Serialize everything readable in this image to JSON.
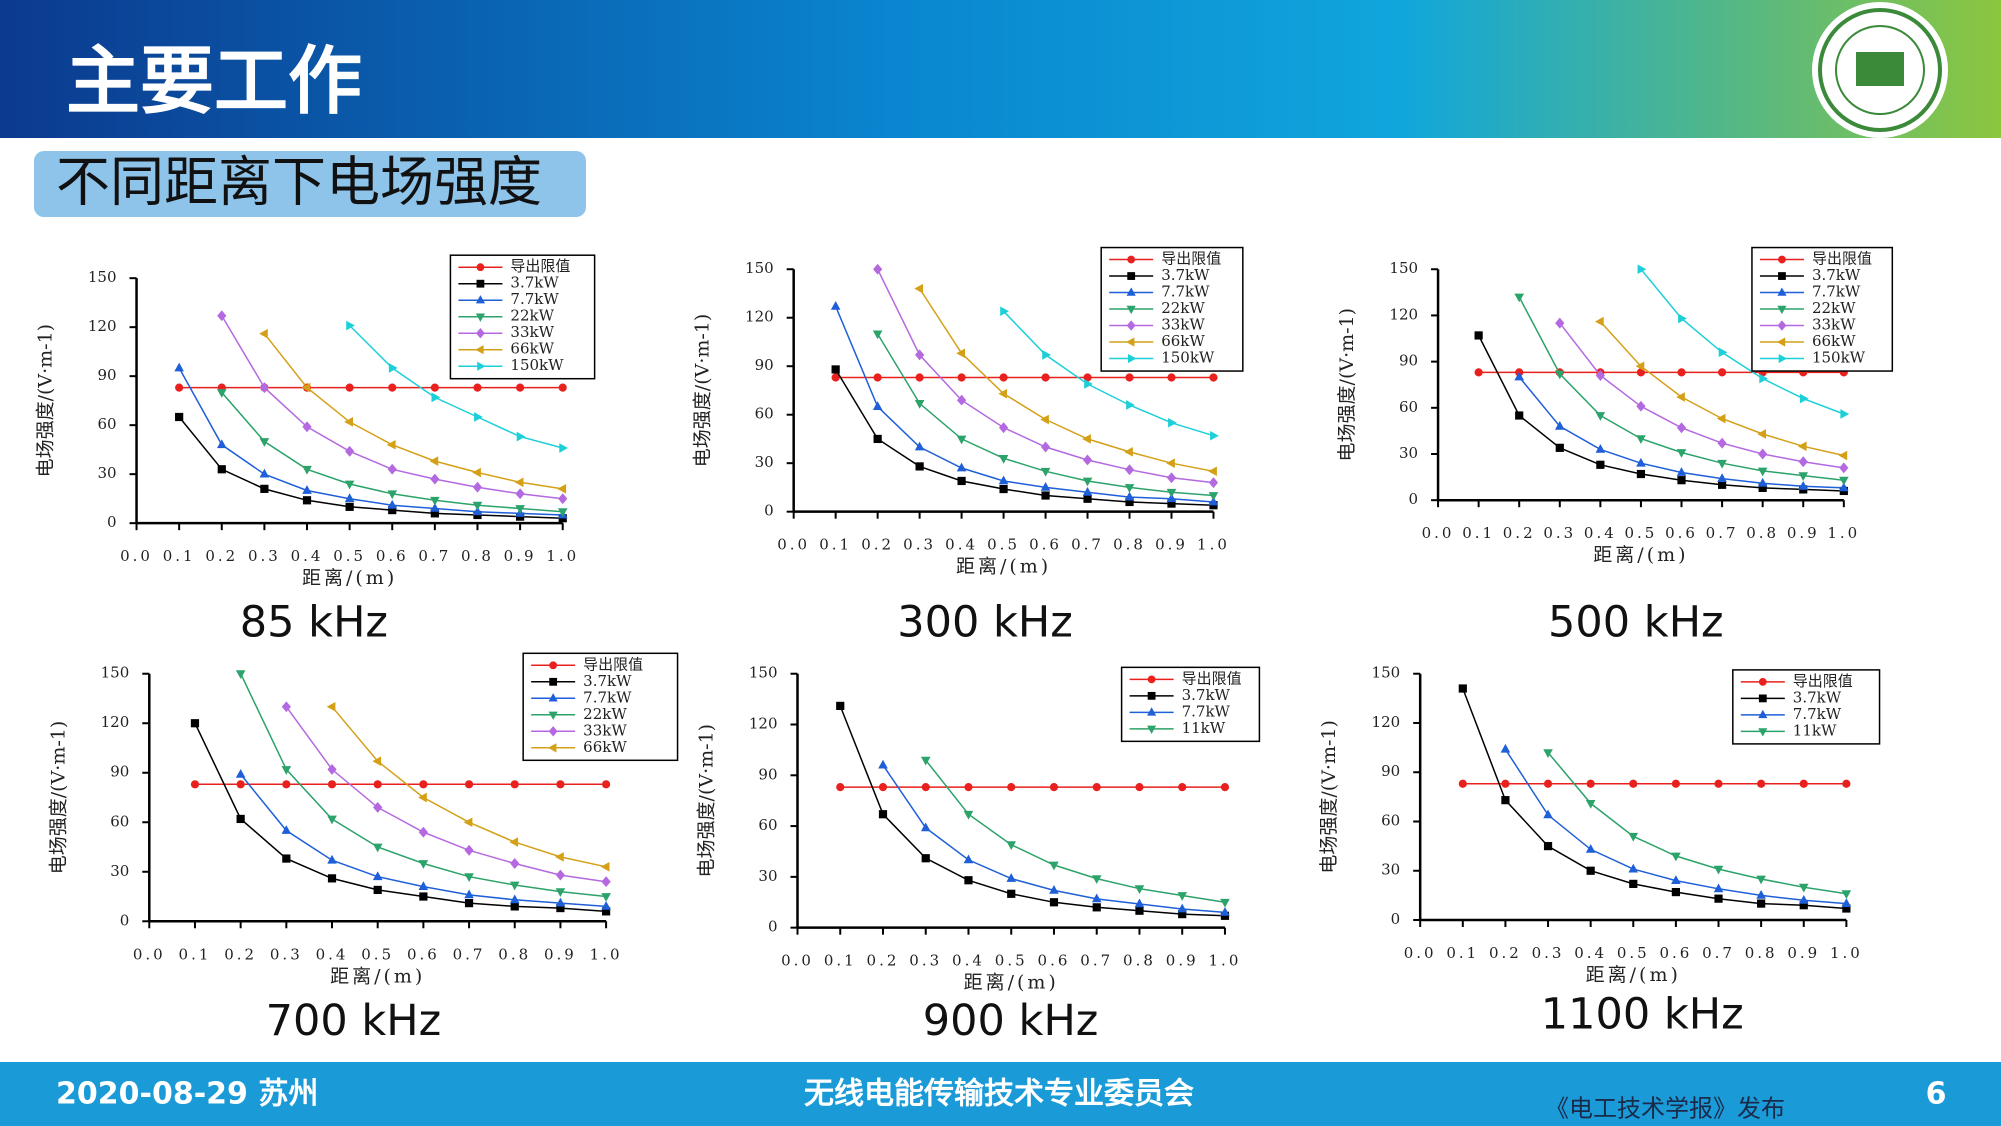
{
  "header": {
    "title": "主要工作",
    "subtitle": "不同距离下电场强度"
  },
  "footer": {
    "date": "2020-08-29 苏州",
    "org": "无线电能传输技术专业委员会",
    "source": "《电工技术学报》发布",
    "page": "6"
  },
  "chart_data": [
    {
      "type": "line",
      "title": "85 kHz",
      "x_label": "距离/(m)",
      "y_label": "电场强度/(V·m-1)",
      "x": [
        0.1,
        0.2,
        0.3,
        0.4,
        0.5,
        0.6,
        0.7,
        0.8,
        0.9,
        1.0
      ],
      "xlim": [
        0,
        1
      ],
      "xticks": [
        {
          "value": 0,
          "label": "0.0"
        },
        0.1,
        0.2,
        0.3,
        0.4,
        0.5,
        0.6,
        0.7,
        0.8,
        0.9,
        {
          "value": 1,
          "label": "1.0"
        }
      ],
      "ylim": [
        0,
        150
      ],
      "yticks": [
        0,
        30,
        60,
        90,
        120,
        150
      ],
      "series": [
        {
          "name": "导出限值",
          "color": "#e8211e",
          "marker": "circle",
          "values": [
            83,
            83,
            83,
            83,
            83,
            83,
            83,
            83,
            83,
            83
          ]
        },
        {
          "name": "3.7kW",
          "color": "#000000",
          "marker": "square",
          "values": [
            65,
            33,
            21,
            14,
            10,
            8,
            6,
            5,
            4,
            3
          ]
        },
        {
          "name": "7.7kW",
          "color": "#1f5fd8",
          "marker": "triangle-up",
          "values": [
            95,
            48,
            30,
            20,
            15,
            11,
            9,
            7,
            6,
            5
          ]
        },
        {
          "name": "22kW",
          "color": "#2ca36a",
          "marker": "triangle-down",
          "values": [
            null,
            80,
            50,
            33,
            24,
            18,
            14,
            11,
            9,
            7
          ]
        },
        {
          "name": "33kW",
          "color": "#b469e0",
          "marker": "diamond",
          "values": [
            null,
            127,
            83,
            59,
            44,
            33,
            27,
            22,
            18,
            15
          ]
        },
        {
          "name": "66kW",
          "color": "#d4a017",
          "marker": "triangle-left",
          "values": [
            null,
            null,
            116,
            83,
            62,
            48,
            38,
            31,
            25,
            21
          ]
        },
        {
          "name": "150kW",
          "color": "#1ccfd8",
          "marker": "triangle-right",
          "values": [
            null,
            null,
            null,
            null,
            121,
            95,
            77,
            65,
            53,
            46
          ]
        }
      ]
    },
    {
      "type": "line",
      "title": "300 kHz",
      "x_label": "距离/(m)",
      "y_label": "电场强度/(V·m-1)",
      "x": [
        0.1,
        0.2,
        0.3,
        0.4,
        0.5,
        0.6,
        0.7,
        0.8,
        0.9,
        1.0
      ],
      "xlim": [
        0,
        1
      ],
      "xticks": [
        {
          "value": 0,
          "label": "0.0"
        },
        0.1,
        0.2,
        0.3,
        0.4,
        0.5,
        0.6,
        0.7,
        0.8,
        0.9,
        {
          "value": 1,
          "label": "1.0"
        }
      ],
      "ylim": [
        0,
        150
      ],
      "yticks": [
        0,
        30,
        60,
        90,
        120,
        150
      ],
      "series": [
        {
          "name": "导出限值",
          "color": "#e8211e",
          "marker": "circle",
          "values": [
            83,
            83,
            83,
            83,
            83,
            83,
            83,
            83,
            83,
            83
          ]
        },
        {
          "name": "3.7kW",
          "color": "#000000",
          "marker": "square",
          "values": [
            88,
            45,
            28,
            19,
            14,
            10,
            8,
            6,
            5,
            4
          ]
        },
        {
          "name": "7.7kW",
          "color": "#1f5fd8",
          "marker": "triangle-up",
          "values": [
            127,
            65,
            40,
            27,
            19,
            15,
            12,
            9,
            8,
            6
          ]
        },
        {
          "name": "22kW",
          "color": "#2ca36a",
          "marker": "triangle-down",
          "values": [
            null,
            110,
            67,
            45,
            33,
            25,
            19,
            15,
            12,
            10
          ]
        },
        {
          "name": "33kW",
          "color": "#b469e0",
          "marker": "diamond",
          "values": [
            null,
            150,
            97,
            69,
            52,
            40,
            32,
            26,
            21,
            18
          ]
        },
        {
          "name": "66kW",
          "color": "#d4a017",
          "marker": "triangle-left",
          "values": [
            null,
            null,
            138,
            98,
            73,
            57,
            45,
            37,
            30,
            25
          ]
        },
        {
          "name": "150kW",
          "color": "#1ccfd8",
          "marker": "triangle-right",
          "values": [
            null,
            null,
            null,
            null,
            124,
            97,
            79,
            66,
            55,
            47
          ]
        }
      ]
    },
    {
      "type": "line",
      "title": "500 kHz",
      "x_label": "距离/(m)",
      "y_label": "电场强度/(V·m-1)",
      "x": [
        0.1,
        0.2,
        0.3,
        0.4,
        0.5,
        0.6,
        0.7,
        0.8,
        0.9,
        1.0
      ],
      "xlim": [
        0,
        1
      ],
      "xticks": [
        {
          "value": 0,
          "label": "0.0"
        },
        0.1,
        0.2,
        0.3,
        0.4,
        0.5,
        0.6,
        0.7,
        0.8,
        0.9,
        {
          "value": 1,
          "label": "1.0"
        }
      ],
      "ylim": [
        0,
        150
      ],
      "yticks": [
        0,
        30,
        60,
        90,
        120,
        150
      ],
      "series": [
        {
          "name": "导出限值",
          "color": "#e8211e",
          "marker": "circle",
          "values": [
            83,
            83,
            83,
            83,
            83,
            83,
            83,
            83,
            83,
            83
          ]
        },
        {
          "name": "3.7kW",
          "color": "#000000",
          "marker": "square",
          "values": [
            107,
            55,
            34,
            23,
            17,
            13,
            10,
            8,
            7,
            6
          ]
        },
        {
          "name": "7.7kW",
          "color": "#1f5fd8",
          "marker": "triangle-up",
          "values": [
            null,
            80,
            48,
            33,
            24,
            18,
            14,
            11,
            9,
            8
          ]
        },
        {
          "name": "22kW",
          "color": "#2ca36a",
          "marker": "triangle-down",
          "values": [
            null,
            132,
            82,
            55,
            40,
            31,
            24,
            19,
            16,
            13
          ]
        },
        {
          "name": "33kW",
          "color": "#b469e0",
          "marker": "diamond",
          "values": [
            null,
            null,
            115,
            81,
            61,
            47,
            37,
            30,
            25,
            21
          ]
        },
        {
          "name": "66kW",
          "color": "#d4a017",
          "marker": "triangle-left",
          "values": [
            null,
            null,
            null,
            116,
            87,
            67,
            53,
            43,
            35,
            29
          ]
        },
        {
          "name": "150kW",
          "color": "#1ccfd8",
          "marker": "triangle-right",
          "values": [
            null,
            null,
            null,
            null,
            150,
            118,
            96,
            79,
            66,
            56
          ]
        }
      ]
    },
    {
      "type": "line",
      "title": "700 kHz",
      "x_label": "距离/(m)",
      "y_label": "电场强度/(V·m-1)",
      "x": [
        0.1,
        0.2,
        0.3,
        0.4,
        0.5,
        0.6,
        0.7,
        0.8,
        0.9,
        1.0
      ],
      "xlim": [
        0,
        1
      ],
      "xticks": [
        {
          "value": 0,
          "label": "0.0"
        },
        0.1,
        0.2,
        0.3,
        0.4,
        0.5,
        0.6,
        0.7,
        0.8,
        0.9,
        {
          "value": 1,
          "label": "1.0"
        }
      ],
      "ylim": [
        0,
        150
      ],
      "yticks": [
        0,
        30,
        60,
        90,
        120,
        150
      ],
      "series": [
        {
          "name": "导出限值",
          "color": "#e8211e",
          "marker": "circle",
          "values": [
            83,
            83,
            83,
            83,
            83,
            83,
            83,
            83,
            83,
            83
          ]
        },
        {
          "name": "3.7kW",
          "color": "#000000",
          "marker": "square",
          "values": [
            120,
            62,
            38,
            26,
            19,
            15,
            11,
            9,
            8,
            6
          ]
        },
        {
          "name": "7.7kW",
          "color": "#1f5fd8",
          "marker": "triangle-up",
          "values": [
            null,
            89,
            55,
            37,
            27,
            21,
            16,
            13,
            11,
            9
          ]
        },
        {
          "name": "22kW",
          "color": "#2ca36a",
          "marker": "triangle-down",
          "values": [
            null,
            150,
            92,
            62,
            45,
            35,
            27,
            22,
            18,
            15
          ]
        },
        {
          "name": "33kW",
          "color": "#b469e0",
          "marker": "diamond",
          "values": [
            null,
            null,
            130,
            92,
            69,
            54,
            43,
            35,
            28,
            24
          ]
        },
        {
          "name": "66kW",
          "color": "#d4a017",
          "marker": "triangle-left",
          "values": [
            null,
            null,
            null,
            130,
            97,
            75,
            60,
            48,
            39,
            33
          ]
        }
      ]
    },
    {
      "type": "line",
      "title": "900 kHz",
      "x_label": "距离/(m)",
      "y_label": "电场强度/(V·m-1)",
      "x": [
        0.1,
        0.2,
        0.3,
        0.4,
        0.5,
        0.6,
        0.7,
        0.8,
        0.9,
        1.0
      ],
      "xlim": [
        0,
        1
      ],
      "xticks": [
        {
          "value": 0,
          "label": "0.0"
        },
        0.1,
        0.2,
        0.3,
        0.4,
        0.5,
        0.6,
        0.7,
        0.8,
        0.9,
        {
          "value": 1,
          "label": "1.0"
        }
      ],
      "ylim": [
        0,
        150
      ],
      "yticks": [
        0,
        30,
        60,
        90,
        120,
        150
      ],
      "series": [
        {
          "name": "导出限值",
          "color": "#e8211e",
          "marker": "circle",
          "values": [
            83,
            83,
            83,
            83,
            83,
            83,
            83,
            83,
            83,
            83
          ]
        },
        {
          "name": "3.7kW",
          "color": "#000000",
          "marker": "square",
          "values": [
            131,
            67,
            41,
            28,
            20,
            15,
            12,
            10,
            8,
            7
          ]
        },
        {
          "name": "7.7kW",
          "color": "#1f5fd8",
          "marker": "triangle-up",
          "values": [
            null,
            96,
            59,
            40,
            29,
            22,
            17,
            14,
            11,
            9
          ]
        },
        {
          "name": "11kW",
          "color": "#2ca36a",
          "marker": "triangle-down",
          "values": [
            null,
            null,
            99,
            67,
            49,
            37,
            29,
            23,
            19,
            15
          ]
        }
      ]
    },
    {
      "type": "line",
      "title": "1100 kHz",
      "x_label": "距离/(m)",
      "y_label": "电场强度/(V·m-1)",
      "x": [
        0.1,
        0.2,
        0.3,
        0.4,
        0.5,
        0.6,
        0.7,
        0.8,
        0.9,
        1.0
      ],
      "xlim": [
        0,
        1
      ],
      "xticks": [
        {
          "value": 0,
          "label": "0.0"
        },
        0.1,
        0.2,
        0.3,
        0.4,
        0.5,
        0.6,
        0.7,
        0.8,
        0.9,
        {
          "value": 1,
          "label": "1.0"
        }
      ],
      "ylim": [
        0,
        150
      ],
      "yticks": [
        0,
        30,
        60,
        90,
        120,
        150
      ],
      "series": [
        {
          "name": "导出限值",
          "color": "#e8211e",
          "marker": "circle",
          "values": [
            83,
            83,
            83,
            83,
            83,
            83,
            83,
            83,
            83,
            83
          ]
        },
        {
          "name": "3.7kW",
          "color": "#000000",
          "marker": "square",
          "values": [
            141,
            73,
            45,
            30,
            22,
            17,
            13,
            10,
            9,
            7
          ]
        },
        {
          "name": "7.7kW",
          "color": "#1f5fd8",
          "marker": "triangle-up",
          "values": [
            null,
            104,
            64,
            43,
            31,
            24,
            19,
            15,
            12,
            10
          ]
        },
        {
          "name": "11kW",
          "color": "#2ca36a",
          "marker": "triangle-down",
          "values": [
            null,
            null,
            102,
            71,
            51,
            39,
            31,
            25,
            20,
            16
          ]
        }
      ]
    }
  ]
}
